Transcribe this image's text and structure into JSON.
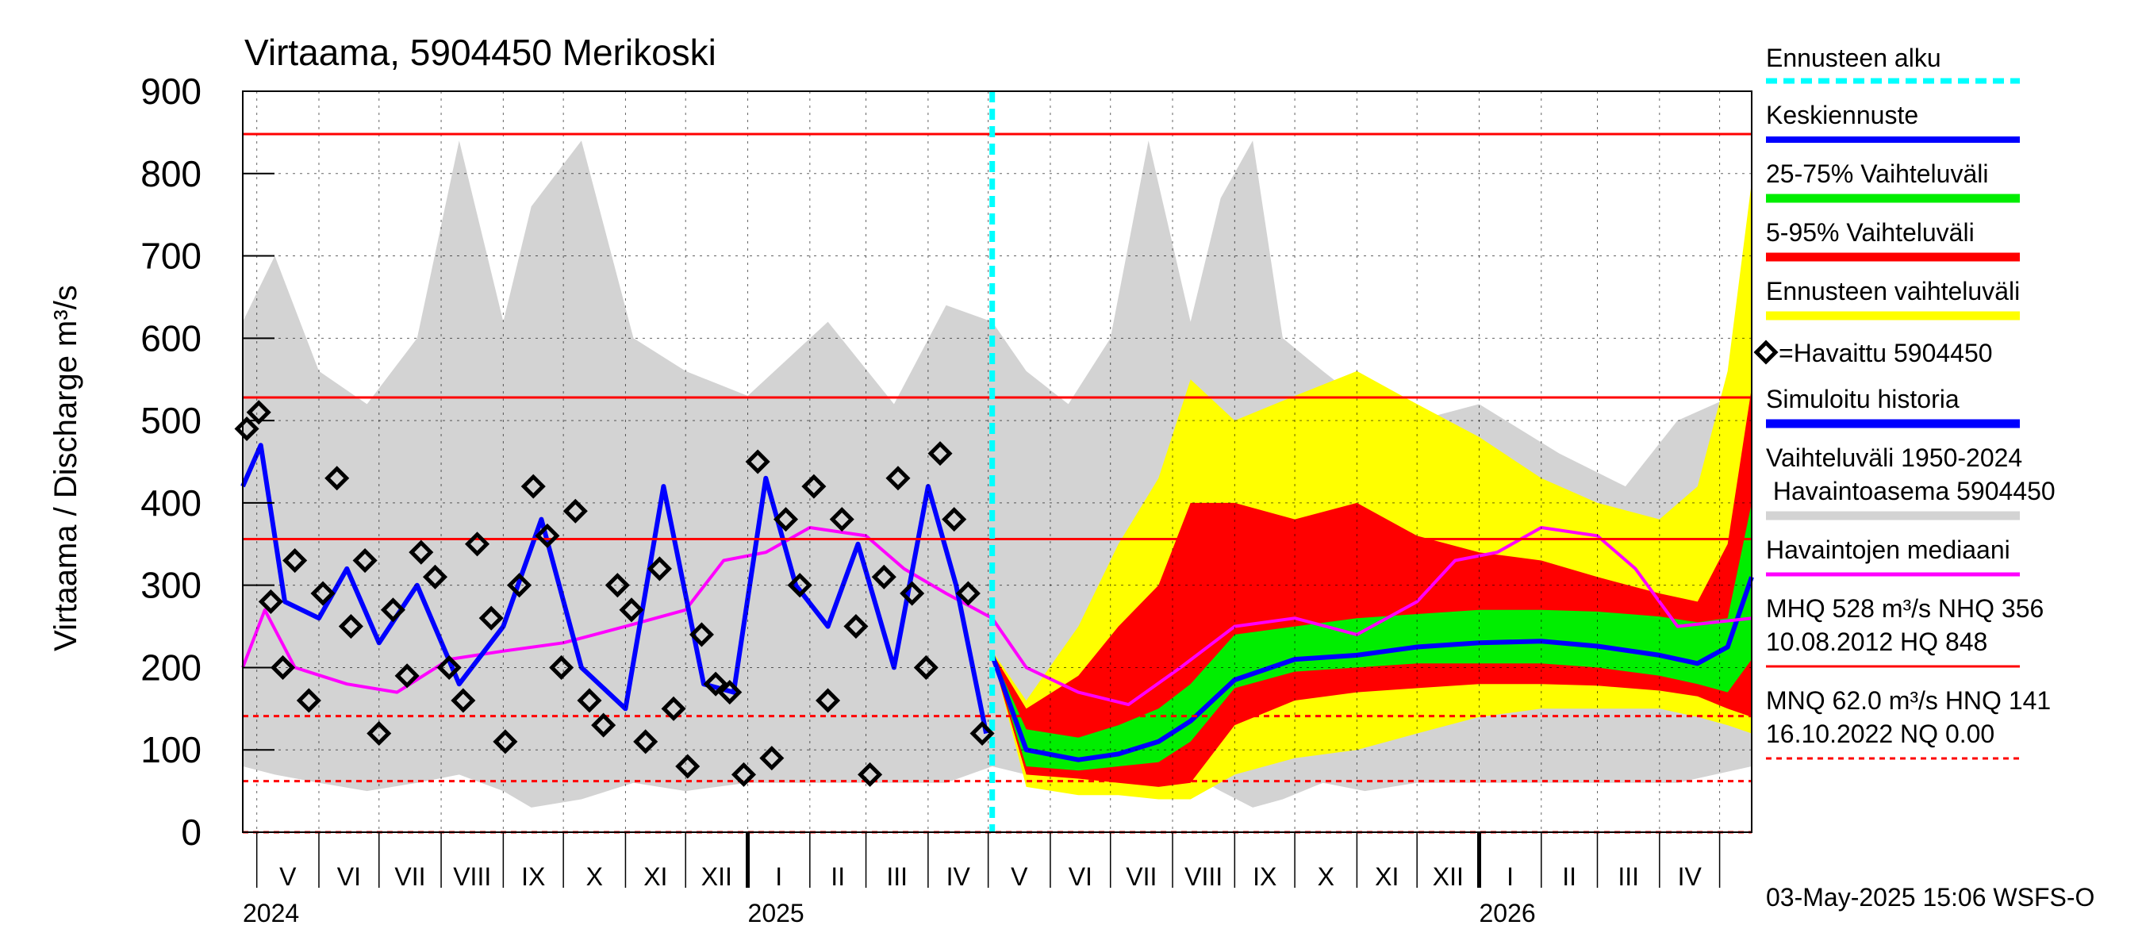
{
  "chart_data": {
    "type": "line",
    "title": "Virtaama, 5904450 Merikoski",
    "ylabel": "Virtaama / Discharge    m³/s",
    "ylim": [
      0,
      900
    ],
    "yticks": [
      0,
      100,
      200,
      300,
      400,
      500,
      600,
      700,
      800,
      900
    ],
    "xlim": [
      "2024-04-24",
      "2026-05-17"
    ],
    "forecast_start": "2025-05-03",
    "months": [
      {
        "label": "V",
        "start": "2024-05-01"
      },
      {
        "label": "VI",
        "start": "2024-06-01"
      },
      {
        "label": "VII",
        "start": "2024-07-01"
      },
      {
        "label": "VIII",
        "start": "2024-08-01"
      },
      {
        "label": "IX",
        "start": "2024-09-01"
      },
      {
        "label": "X",
        "start": "2024-10-01"
      },
      {
        "label": "XI",
        "start": "2024-11-01"
      },
      {
        "label": "XII",
        "start": "2024-12-01"
      },
      {
        "label": "I",
        "start": "2025-01-01"
      },
      {
        "label": "II",
        "start": "2025-02-01"
      },
      {
        "label": "III",
        "start": "2025-03-01"
      },
      {
        "label": "IV",
        "start": "2025-04-01"
      },
      {
        "label": "V",
        "start": "2025-05-01"
      },
      {
        "label": "VI",
        "start": "2025-06-01"
      },
      {
        "label": "VII",
        "start": "2025-07-01"
      },
      {
        "label": "VIII",
        "start": "2025-08-01"
      },
      {
        "label": "IX",
        "start": "2025-09-01"
      },
      {
        "label": "X",
        "start": "2025-10-01"
      },
      {
        "label": "XI",
        "start": "2025-11-01"
      },
      {
        "label": "XII",
        "start": "2025-12-01"
      },
      {
        "label": "I",
        "start": "2026-01-01"
      },
      {
        "label": "II",
        "start": "2026-02-01"
      },
      {
        "label": "III",
        "start": "2026-03-01"
      },
      {
        "label": "IV",
        "start": "2026-04-01"
      }
    ],
    "month_ends": "2026-05-01",
    "years": [
      {
        "label": "2024",
        "start": "2024-05-01"
      },
      {
        "label": "2025",
        "start": "2025-01-01"
      },
      {
        "label": "2026",
        "start": "2026-01-01"
      }
    ],
    "reference_lines": [
      {
        "name": "HQ",
        "value": 848,
        "style": "solid"
      },
      {
        "name": "MHQ",
        "value": 528,
        "style": "solid"
      },
      {
        "name": "NHQ",
        "value": 356,
        "style": "solid"
      },
      {
        "name": "HNQ",
        "value": 141,
        "style": "dashed"
      },
      {
        "name": "MNQ",
        "value": 62.0,
        "style": "dashed"
      },
      {
        "name": "NQ",
        "value": 0.0,
        "style": "dashed"
      }
    ],
    "series": [
      {
        "name": "Vaihteluväli 1950-2024 Havaintoasema 5904450",
        "kind": "band",
        "color": "#d3d3d3",
        "x": [
          "2024-04-24",
          "2024-05-10",
          "2024-06-01",
          "2024-06-25",
          "2024-07-20",
          "2024-08-10",
          "2024-09-01",
          "2024-09-15",
          "2024-10-10",
          "2024-11-05",
          "2024-12-01",
          "2025-01-01",
          "2025-02-10",
          "2025-03-15",
          "2025-04-10",
          "2025-05-03",
          "2025-05-20",
          "2025-06-10",
          "2025-07-01",
          "2025-07-20",
          "2025-08-10",
          "2025-08-25",
          "2025-09-10",
          "2025-09-25",
          "2025-10-15",
          "2025-11-05",
          "2025-12-01",
          "2026-01-01",
          "2026-02-10",
          "2026-03-15",
          "2026-04-10",
          "2026-05-17"
        ],
        "upper": [
          620,
          700,
          560,
          520,
          600,
          840,
          620,
          760,
          840,
          600,
          560,
          530,
          620,
          520,
          640,
          620,
          560,
          520,
          600,
          840,
          620,
          770,
          840,
          600,
          560,
          520,
          500,
          520,
          460,
          420,
          500,
          540
        ],
        "lower": [
          80,
          70,
          60,
          50,
          60,
          70,
          50,
          30,
          40,
          60,
          50,
          60,
          60,
          60,
          60,
          80,
          70,
          60,
          50,
          60,
          70,
          50,
          30,
          40,
          60,
          50,
          60,
          60,
          60,
          60,
          60,
          80
        ]
      },
      {
        "name": "Ennusteen vaihteluväli",
        "kind": "band",
        "color": "#ffff00",
        "x": [
          "2025-05-03",
          "2025-05-20",
          "2025-06-15",
          "2025-07-05",
          "2025-07-25",
          "2025-08-10",
          "2025-09-01",
          "2025-10-01",
          "2025-11-01",
          "2025-12-01",
          "2026-01-01",
          "2026-02-01",
          "2026-03-01",
          "2026-04-01",
          "2026-04-20",
          "2026-05-05",
          "2026-05-17"
        ],
        "upper": [
          220,
          160,
          250,
          350,
          430,
          550,
          500,
          530,
          560,
          520,
          480,
          430,
          400,
          380,
          420,
          560,
          790
        ],
        "lower": [
          215,
          55,
          45,
          45,
          40,
          40,
          70,
          90,
          100,
          120,
          140,
          150,
          150,
          150,
          140,
          130,
          120
        ]
      },
      {
        "name": "5-95% Vaihteluväli",
        "kind": "band",
        "color": "#ff0000",
        "x": [
          "2025-05-03",
          "2025-05-20",
          "2025-06-15",
          "2025-07-05",
          "2025-07-25",
          "2025-08-10",
          "2025-09-01",
          "2025-10-01",
          "2025-11-01",
          "2025-12-01",
          "2026-01-01",
          "2026-02-01",
          "2026-03-01",
          "2026-04-01",
          "2026-04-20",
          "2026-05-05",
          "2026-05-17"
        ],
        "upper": [
          218,
          150,
          190,
          250,
          300,
          400,
          400,
          380,
          400,
          360,
          340,
          330,
          310,
          290,
          280,
          350,
          540
        ],
        "lower": [
          212,
          70,
          65,
          60,
          55,
          60,
          130,
          160,
          170,
          175,
          180,
          180,
          178,
          172,
          165,
          150,
          140
        ]
      },
      {
        "name": "25-75% Vaihteluväli",
        "kind": "band",
        "color": "#00ee00",
        "x": [
          "2025-05-03",
          "2025-05-20",
          "2025-06-15",
          "2025-07-05",
          "2025-07-25",
          "2025-08-10",
          "2025-09-01",
          "2025-10-01",
          "2025-11-01",
          "2025-12-01",
          "2026-01-01",
          "2026-02-01",
          "2026-03-01",
          "2026-04-01",
          "2026-04-20",
          "2026-05-05",
          "2026-05-17"
        ],
        "upper": [
          216,
          125,
          115,
          130,
          150,
          180,
          240,
          250,
          260,
          265,
          270,
          270,
          268,
          262,
          255,
          260,
          400
        ],
        "lower": [
          214,
          80,
          75,
          80,
          85,
          110,
          175,
          195,
          200,
          205,
          205,
          205,
          200,
          190,
          180,
          170,
          210
        ]
      },
      {
        "name": "Keskiennuste",
        "kind": "line",
        "color": "#0000ff",
        "x": [
          "2025-05-03",
          "2025-05-20",
          "2025-06-15",
          "2025-07-05",
          "2025-07-25",
          "2025-08-10",
          "2025-09-01",
          "2025-10-01",
          "2025-11-01",
          "2025-12-01",
          "2026-01-01",
          "2026-02-01",
          "2026-03-01",
          "2026-04-01",
          "2026-04-20",
          "2026-05-05",
          "2026-05-17"
        ],
        "values": [
          215,
          100,
          88,
          95,
          110,
          135,
          185,
          210,
          215,
          225,
          230,
          232,
          226,
          215,
          205,
          225,
          310
        ]
      },
      {
        "name": "Havaintojen mediaani",
        "kind": "line",
        "color": "#ff00ff",
        "x": [
          "2024-04-24",
          "2024-05-05",
          "2024-05-20",
          "2024-06-15",
          "2024-07-10",
          "2024-08-05",
          "2024-09-01",
          "2024-10-01",
          "2024-11-01",
          "2024-12-01",
          "2024-12-20",
          "2025-01-10",
          "2025-02-01",
          "2025-03-01",
          "2025-03-20",
          "2025-04-10",
          "2025-05-03",
          "2025-05-20",
          "2025-06-15",
          "2025-07-10",
          "2025-08-05",
          "2025-09-01",
          "2025-10-01",
          "2025-11-01",
          "2025-12-01",
          "2025-12-20",
          "2026-01-10",
          "2026-02-01",
          "2026-03-01",
          "2026-03-20",
          "2026-04-10",
          "2026-05-17"
        ],
        "values": [
          200,
          270,
          200,
          180,
          170,
          210,
          220,
          230,
          250,
          270,
          330,
          340,
          370,
          360,
          320,
          290,
          260,
          200,
          170,
          155,
          200,
          250,
          260,
          240,
          280,
          330,
          340,
          370,
          360,
          320,
          250,
          260
        ]
      },
      {
        "name": "Simuloitu historia",
        "kind": "line",
        "color": "#0000ff",
        "x": [
          "2024-04-24",
          "2024-05-03",
          "2024-05-15",
          "2024-06-01",
          "2024-06-15",
          "2024-07-01",
          "2024-07-20",
          "2024-08-10",
          "2024-09-01",
          "2024-09-20",
          "2024-10-10",
          "2024-11-01",
          "2024-11-20",
          "2024-12-10",
          "2024-12-25",
          "2025-01-10",
          "2025-01-25",
          "2025-02-10",
          "2025-02-25",
          "2025-03-15",
          "2025-04-01",
          "2025-04-15",
          "2025-04-30"
        ],
        "values": [
          420,
          470,
          280,
          260,
          320,
          230,
          300,
          180,
          250,
          380,
          200,
          150,
          420,
          180,
          170,
          430,
          300,
          250,
          350,
          200,
          420,
          300,
          120
        ]
      },
      {
        "name": "Havaittu 5904450",
        "kind": "scatter",
        "color": "#000000",
        "x": [
          "2024-04-26",
          "2024-05-02",
          "2024-05-08",
          "2024-05-14",
          "2024-05-20",
          "2024-05-27",
          "2024-06-03",
          "2024-06-10",
          "2024-06-17",
          "2024-06-24",
          "2024-07-01",
          "2024-07-08",
          "2024-07-15",
          "2024-07-22",
          "2024-07-29",
          "2024-08-05",
          "2024-08-12",
          "2024-08-19",
          "2024-08-26",
          "2024-09-02",
          "2024-09-09",
          "2024-09-16",
          "2024-09-23",
          "2024-09-30",
          "2024-10-07",
          "2024-10-14",
          "2024-10-21",
          "2024-10-28",
          "2024-11-04",
          "2024-11-11",
          "2024-11-18",
          "2024-11-25",
          "2024-12-02",
          "2024-12-09",
          "2024-12-16",
          "2024-12-23",
          "2024-12-30",
          "2025-01-06",
          "2025-01-13",
          "2025-01-20",
          "2025-01-27",
          "2025-02-03",
          "2025-02-10",
          "2025-02-17",
          "2025-02-24",
          "2025-03-03",
          "2025-03-10",
          "2025-03-17",
          "2025-03-24",
          "2025-03-31",
          "2025-04-07",
          "2025-04-14",
          "2025-04-21",
          "2025-04-28"
        ],
        "values": [
          490,
          510,
          280,
          200,
          330,
          160,
          290,
          430,
          250,
          330,
          120,
          270,
          190,
          340,
          310,
          200,
          160,
          350,
          260,
          110,
          300,
          420,
          360,
          200,
          390,
          160,
          130,
          300,
          270,
          110,
          320,
          150,
          80,
          240,
          180,
          170,
          70,
          450,
          90,
          380,
          300,
          420,
          160,
          380,
          250,
          70,
          310,
          430,
          290,
          200,
          460,
          380,
          290,
          120
        ]
      }
    ]
  },
  "legend": {
    "forecast_start": "Ennusteen alku",
    "mean_forecast": "Keskiennuste",
    "band_25_75": "25-75% Vaihteluväli",
    "band_5_95": "5-95% Vaihteluväli",
    "forecast_range": "Ennusteen vaihteluväli",
    "observed": "=Havaittu 5904450",
    "simulated": "Simuloitu historia",
    "hist_range_line1": "Vaihteluväli 1950-2024",
    "hist_range_line2": " Havaintoasema 5904450",
    "median": "Havaintojen mediaani",
    "stats_high_line1": "MHQ  528 m³/s NHQ  356",
    "stats_high_line2": "10.08.2012 HQ  848",
    "stats_low_line1": "MNQ 62.0 m³/s HNQ  141",
    "stats_low_line2": "16.10.2022 NQ 0.00"
  },
  "footer": "03-May-2025 15:06 WSFS-O",
  "colors": {
    "forecast_start": "#00ffff",
    "mean_forecast": "#0000ff",
    "band_25_75": "#00ee00",
    "band_5_95": "#ff0000",
    "forecast_range": "#ffff00",
    "hist_range": "#d3d3d3",
    "median": "#ff00ff",
    "simulated": "#0000ff",
    "ref_line": "#ff0000"
  }
}
